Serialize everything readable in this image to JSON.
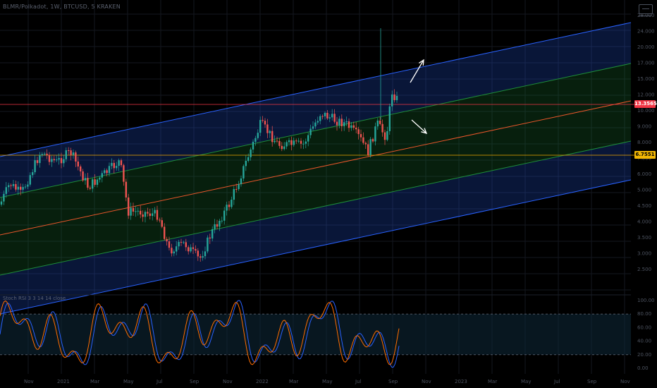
{
  "header": {
    "title": "BLMR/Polkadot, 1W, BTCUSD, 5 KRAKEN",
    "oscillator_title": "Stoch RSI 3 3 14 14 close"
  },
  "price_tags": {
    "current": "13.3565",
    "level": "6.7551"
  },
  "colors": {
    "channel_outer": "#2962ff",
    "channel_inner": "#1e8c3a",
    "midline": "#e8562a",
    "level_line": "#f2a900",
    "price_line": "#f23645",
    "up_candle": "#26a69a",
    "down_candle": "#ef5350",
    "stoch_k": "#2962ff",
    "stoch_d": "#ff6d00"
  },
  "chart_data": {
    "type": "candlestick",
    "price_axis_labels": [
      "28.000",
      "24.000",
      "20.000",
      "17.000",
      "15.000",
      "12.000",
      "10.000",
      "9.000",
      "8.000",
      "7.000",
      "6.000",
      "5.000",
      "4.500",
      "4.000",
      "3.500",
      "3.000",
      "2.500"
    ],
    "x_axis_labels": [
      "Nov",
      "2021",
      "Mar",
      "May",
      "Jul",
      "Sep",
      "Nov",
      "2022",
      "Mar",
      "May",
      "Jul",
      "Sep",
      "Nov",
      "2023",
      "Mar",
      "May",
      "Jul",
      "Sep",
      "Nov"
    ],
    "oscillator_axis_labels": [
      "100.00",
      "80.00",
      "60.00",
      "40.00",
      "20.00",
      "0.00"
    ],
    "current_price": 13.3565,
    "horizontal_level": 6.7551,
    "oscillator_band": [
      20,
      80
    ],
    "annotations": [
      "arrow-up-right",
      "arrow-down-right"
    ]
  }
}
